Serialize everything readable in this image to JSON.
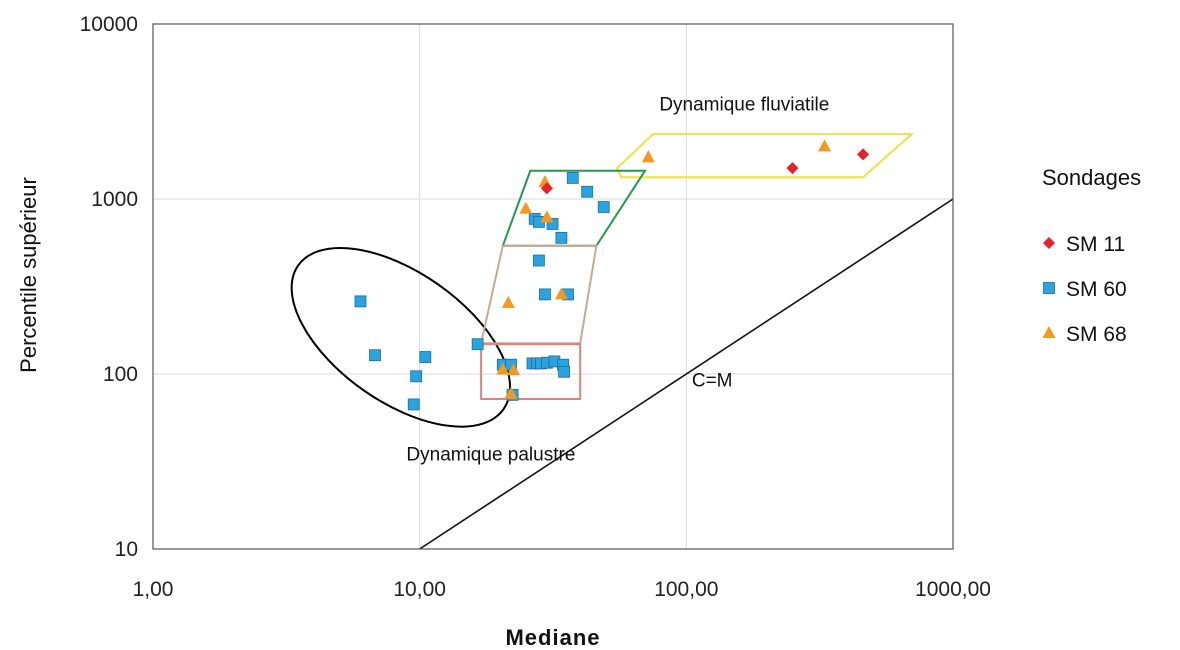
{
  "chart_data": {
    "type": "scatter",
    "title": "",
    "xlabel": "Mediane",
    "ylabel": "Percentile supérieur",
    "x_scale": "log",
    "y_scale": "log",
    "xlim": [
      1,
      1000
    ],
    "ylim": [
      10,
      10000
    ],
    "x_ticks": [
      "1,00",
      "10,00",
      "100,00",
      "1000,00"
    ],
    "y_ticks": [
      "10",
      "100",
      "1000",
      "10000"
    ],
    "grid": true,
    "legend_title": "Sondages",
    "legend_position": "right",
    "series": [
      {
        "name": "SM 11",
        "marker": "diamond",
        "color": "#e8202a",
        "points": [
          [
            30,
            1150
          ],
          [
            250,
            1500
          ],
          [
            460,
            1800
          ]
        ]
      },
      {
        "name": "SM 60",
        "marker": "square",
        "color": "#2aa3e0",
        "points": [
          [
            6,
            260
          ],
          [
            6.8,
            128
          ],
          [
            9.7,
            97
          ],
          [
            9.5,
            67
          ],
          [
            10.5,
            125
          ],
          [
            16.5,
            148
          ],
          [
            20.5,
            113
          ],
          [
            22,
            113
          ],
          [
            22.3,
            76
          ],
          [
            26.5,
            115
          ],
          [
            27.5,
            115
          ],
          [
            28.5,
            115
          ],
          [
            30,
            116
          ],
          [
            32,
            118
          ],
          [
            34.5,
            113
          ],
          [
            34.8,
            103
          ],
          [
            28,
            445
          ],
          [
            29.5,
            285
          ],
          [
            36,
            285
          ],
          [
            34,
            600
          ],
          [
            31.5,
            720
          ],
          [
            27,
            770
          ],
          [
            28,
            740
          ],
          [
            37.5,
            1320
          ],
          [
            42.5,
            1100
          ],
          [
            49,
            900
          ]
        ]
      },
      {
        "name": "SM 68",
        "marker": "triangle",
        "color": "#f39a1e",
        "points": [
          [
            20.5,
            106
          ],
          [
            22.5,
            105
          ],
          [
            22,
            77
          ],
          [
            21.5,
            255
          ],
          [
            25,
            880
          ],
          [
            30,
            785
          ],
          [
            29.5,
            1250
          ],
          [
            34,
            285
          ],
          [
            72,
            1730
          ],
          [
            330,
            2000
          ]
        ]
      }
    ],
    "reference_line": {
      "label": "C=M",
      "points": [
        [
          10,
          10
        ],
        [
          1000,
          1000
        ]
      ]
    },
    "annotations": [
      {
        "text": "Dynamique fluviatile",
        "x": 165,
        "y": 3200
      },
      {
        "text": "Dynamique palustre",
        "x": 18.5,
        "y": 32
      },
      {
        "text": "C=M",
        "x": 125,
        "y": 85
      }
    ],
    "regions": [
      {
        "shape": "ellipse",
        "color": "#000000",
        "center": [
          8.5,
          162
        ],
        "radii_decades": [
          0.47,
          0.37
        ],
        "rotation_deg": 35
      },
      {
        "shape": "polygon",
        "color": "#f0e23a",
        "points": [
          [
            55,
            1500
          ],
          [
            75,
            2350
          ],
          [
            700,
            2350
          ],
          [
            460,
            1330
          ],
          [
            57,
            1330
          ]
        ]
      },
      {
        "shape": "polygon",
        "color": "#1f9a4f",
        "points": [
          [
            20.5,
            540
          ],
          [
            26,
            1450
          ],
          [
            70,
            1450
          ],
          [
            46,
            540
          ]
        ]
      },
      {
        "shape": "polygon",
        "color": "#c9a98f",
        "points": [
          [
            17,
            150
          ],
          [
            20.5,
            540
          ],
          [
            46,
            540
          ],
          [
            40,
            150
          ]
        ]
      },
      {
        "shape": "polygon",
        "color": "#e08080",
        "points": [
          [
            17,
            148
          ],
          [
            40,
            148
          ],
          [
            40,
            72
          ],
          [
            17,
            72
          ]
        ]
      }
    ]
  }
}
